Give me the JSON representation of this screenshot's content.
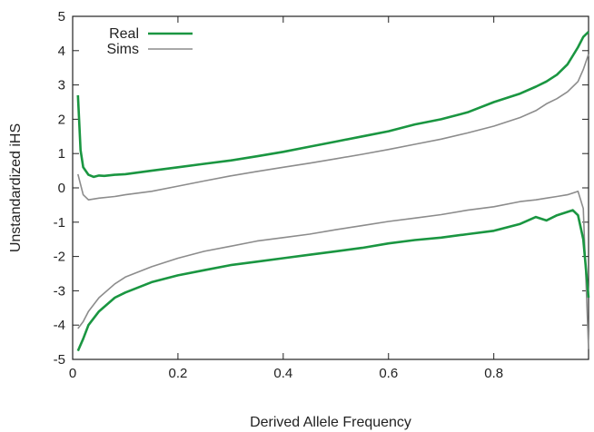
{
  "chart_data": {
    "type": "line",
    "title": "",
    "xlabel": "Derived Allele Frequency",
    "ylabel": "Unstandardized iHS",
    "xlim": [
      0,
      0.98
    ],
    "ylim": [
      -5,
      5
    ],
    "x_ticks": [
      "0",
      "0.2",
      "0.4",
      "0.6",
      "0.8"
    ],
    "x_tick_values": [
      0,
      0.2,
      0.4,
      0.6,
      0.8
    ],
    "y_ticks": [
      "5",
      "4",
      "3",
      "2",
      "1",
      "0",
      "-1",
      "-2",
      "-3",
      "-4",
      "-5"
    ],
    "y_tick_values": [
      5,
      4,
      3,
      2,
      1,
      0,
      -1,
      -2,
      -3,
      -4,
      -5
    ],
    "grid": false,
    "legend_position": "top-left",
    "legend": [
      {
        "label": "Real",
        "color": "#1a9641"
      },
      {
        "label": "Sims",
        "color": "#8c8c8c"
      }
    ],
    "series": [
      {
        "name": "Real",
        "color": "#1a9641",
        "branches": [
          {
            "part": "upper",
            "x": [
              0.01,
              0.015,
              0.02,
              0.03,
              0.04,
              0.05,
              0.06,
              0.08,
              0.1,
              0.15,
              0.2,
              0.25,
              0.3,
              0.35,
              0.4,
              0.45,
              0.5,
              0.55,
              0.6,
              0.65,
              0.7,
              0.75,
              0.8,
              0.85,
              0.88,
              0.9,
              0.92,
              0.94,
              0.95,
              0.96,
              0.97,
              0.98
            ],
            "y": [
              2.7,
              1.1,
              0.6,
              0.38,
              0.32,
              0.36,
              0.35,
              0.38,
              0.4,
              0.5,
              0.6,
              0.7,
              0.8,
              0.92,
              1.05,
              1.2,
              1.35,
              1.5,
              1.65,
              1.85,
              2.0,
              2.2,
              2.5,
              2.75,
              2.95,
              3.1,
              3.3,
              3.6,
              3.85,
              4.1,
              4.4,
              4.55
            ]
          },
          {
            "part": "lower",
            "x": [
              0.01,
              0.02,
              0.03,
              0.05,
              0.08,
              0.1,
              0.15,
              0.2,
              0.25,
              0.3,
              0.35,
              0.4,
              0.45,
              0.5,
              0.55,
              0.6,
              0.65,
              0.7,
              0.75,
              0.8,
              0.85,
              0.88,
              0.9,
              0.92,
              0.94,
              0.95,
              0.96,
              0.97,
              0.98
            ],
            "y": [
              -4.75,
              -4.4,
              -4.0,
              -3.6,
              -3.2,
              -3.05,
              -2.75,
              -2.55,
              -2.4,
              -2.25,
              -2.15,
              -2.05,
              -1.95,
              -1.85,
              -1.75,
              -1.62,
              -1.52,
              -1.45,
              -1.35,
              -1.25,
              -1.05,
              -0.85,
              -0.95,
              -0.8,
              -0.7,
              -0.65,
              -0.8,
              -1.5,
              -3.2
            ]
          }
        ]
      },
      {
        "name": "Sims",
        "color": "#8c8c8c",
        "branches": [
          {
            "part": "upper",
            "x": [
              0.01,
              0.02,
              0.03,
              0.05,
              0.08,
              0.1,
              0.15,
              0.2,
              0.25,
              0.3,
              0.35,
              0.4,
              0.45,
              0.5,
              0.55,
              0.6,
              0.65,
              0.7,
              0.75,
              0.8,
              0.85,
              0.88,
              0.9,
              0.92,
              0.94,
              0.96,
              0.97,
              0.98
            ],
            "y": [
              0.4,
              -0.2,
              -0.35,
              -0.3,
              -0.25,
              -0.2,
              -0.1,
              0.05,
              0.2,
              0.35,
              0.48,
              0.6,
              0.72,
              0.85,
              0.98,
              1.12,
              1.27,
              1.42,
              1.6,
              1.8,
              2.05,
              2.25,
              2.45,
              2.6,
              2.8,
              3.1,
              3.45,
              3.9
            ]
          },
          {
            "part": "lower",
            "x": [
              0.01,
              0.02,
              0.03,
              0.05,
              0.08,
              0.1,
              0.15,
              0.2,
              0.25,
              0.3,
              0.35,
              0.4,
              0.45,
              0.5,
              0.55,
              0.6,
              0.65,
              0.7,
              0.75,
              0.8,
              0.85,
              0.88,
              0.9,
              0.92,
              0.94,
              0.95,
              0.96,
              0.97,
              0.98
            ],
            "y": [
              -4.1,
              -3.9,
              -3.6,
              -3.2,
              -2.8,
              -2.6,
              -2.3,
              -2.05,
              -1.85,
              -1.7,
              -1.55,
              -1.45,
              -1.35,
              -1.22,
              -1.1,
              -0.98,
              -0.88,
              -0.78,
              -0.65,
              -0.55,
              -0.4,
              -0.35,
              -0.3,
              -0.25,
              -0.2,
              -0.15,
              -0.1,
              -0.6,
              -4.7
            ]
          }
        ]
      }
    ]
  }
}
